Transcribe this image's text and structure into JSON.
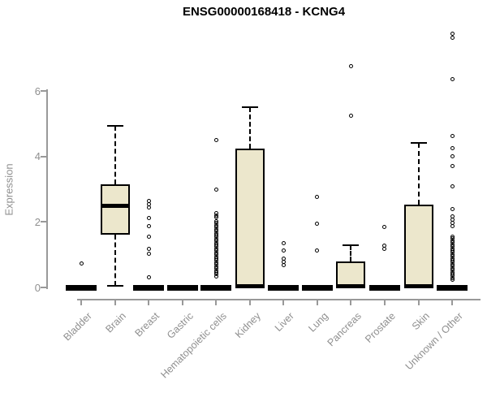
{
  "chart_data": {
    "type": "boxplot",
    "title": "ENSG00000168418 - KCNG4",
    "ylabel": "Expression",
    "xlabel": "",
    "yticks": [
      0,
      2,
      4,
      6
    ],
    "ylim": [
      0,
      7.9
    ],
    "grid": false,
    "legend": "none",
    "categories": [
      "Bladder",
      "Brain",
      "Breast",
      "Gastric",
      "Hematopoietic cells",
      "Kidney",
      "Liver",
      "Lung",
      "Pancreas",
      "Prostate",
      "Skin",
      "Unknown / Other"
    ],
    "series": [
      {
        "category": "Bladder",
        "collapsed": true,
        "q1": 0,
        "median": 0,
        "q3": 0,
        "whisker_low": null,
        "whisker_high": null,
        "outliers": [
          0.74
        ]
      },
      {
        "category": "Brain",
        "collapsed": false,
        "q1": 1.61,
        "median": 2.5,
        "q3": 3.15,
        "whisker_low": 0.05,
        "whisker_high": 4.93,
        "outliers": []
      },
      {
        "category": "Breast",
        "collapsed": true,
        "q1": 0,
        "median": 0,
        "q3": 0,
        "whisker_low": null,
        "whisker_high": null,
        "outliers": [
          2.63,
          2.54,
          2.45,
          2.13,
          1.88,
          1.54,
          1.17,
          1.02,
          0.3
        ]
      },
      {
        "category": "Gastric",
        "collapsed": true,
        "q1": 0,
        "median": 0,
        "q3": 0,
        "whisker_low": null,
        "whisker_high": null,
        "outliers": []
      },
      {
        "category": "Hematopoietic cells",
        "collapsed": true,
        "q1": 0,
        "median": 0,
        "q3": 0,
        "whisker_low": null,
        "whisker_high": null,
        "outliers": [
          4.5,
          3.0,
          2.26,
          2.2,
          2.14,
          2.02,
          1.96,
          1.9,
          1.84,
          1.78,
          1.72,
          1.66,
          1.6,
          1.54,
          1.48,
          1.42,
          1.36,
          1.3,
          1.24,
          1.18,
          1.12,
          1.06,
          1.0,
          0.94,
          0.88,
          0.82,
          0.76,
          0.7,
          0.64,
          0.58,
          0.52,
          0.46,
          0.4,
          0.34
        ]
      },
      {
        "category": "Kidney",
        "collapsed": false,
        "q1": 0,
        "median": 0.04,
        "q3": 4.24,
        "whisker_low": null,
        "whisker_high": 5.5,
        "outliers": []
      },
      {
        "category": "Liver",
        "collapsed": true,
        "q1": 0,
        "median": 0,
        "q3": 0,
        "whisker_low": null,
        "whisker_high": null,
        "outliers": [
          1.34,
          1.12,
          0.88,
          0.78,
          0.68
        ]
      },
      {
        "category": "Lung",
        "collapsed": true,
        "q1": 0,
        "median": 0,
        "q3": 0,
        "whisker_low": null,
        "whisker_high": null,
        "outliers": [
          2.76,
          1.94,
          1.12
        ]
      },
      {
        "category": "Pancreas",
        "collapsed": false,
        "q1": 0,
        "median": 0.04,
        "q3": 0.79,
        "whisker_low": null,
        "whisker_high": 1.3,
        "outliers": [
          6.76,
          5.24
        ]
      },
      {
        "category": "Prostate",
        "collapsed": true,
        "q1": 0,
        "median": 0,
        "q3": 0,
        "whisker_low": null,
        "whisker_high": null,
        "outliers": [
          1.84,
          1.27,
          1.17
        ]
      },
      {
        "category": "Skin",
        "collapsed": false,
        "q1": 0,
        "median": 0.04,
        "q3": 2.53,
        "whisker_low": null,
        "whisker_high": 4.42,
        "outliers": []
      },
      {
        "category": "Unknown / Other",
        "collapsed": true,
        "q1": 0,
        "median": 0,
        "q3": 0,
        "whisker_low": null,
        "whisker_high": null,
        "outliers": [
          7.75,
          7.62,
          6.35,
          4.62,
          4.25,
          4.0,
          3.7,
          3.08,
          2.4,
          2.16,
          2.06,
          1.96,
          1.86,
          1.55,
          1.49,
          1.43,
          1.37,
          1.31,
          1.25,
          1.19,
          1.13,
          1.07,
          1.01,
          0.95,
          0.89,
          0.83,
          0.77,
          0.71,
          0.65,
          0.59,
          0.53,
          0.47,
          0.41,
          0.35,
          0.29,
          0.23
        ]
      }
    ],
    "colors": {
      "box_fill": "#ECE7CC",
      "box_border": "#000000",
      "axis": "#999999",
      "tick_text": "#8F8F8F",
      "title_text": "#000000"
    }
  }
}
